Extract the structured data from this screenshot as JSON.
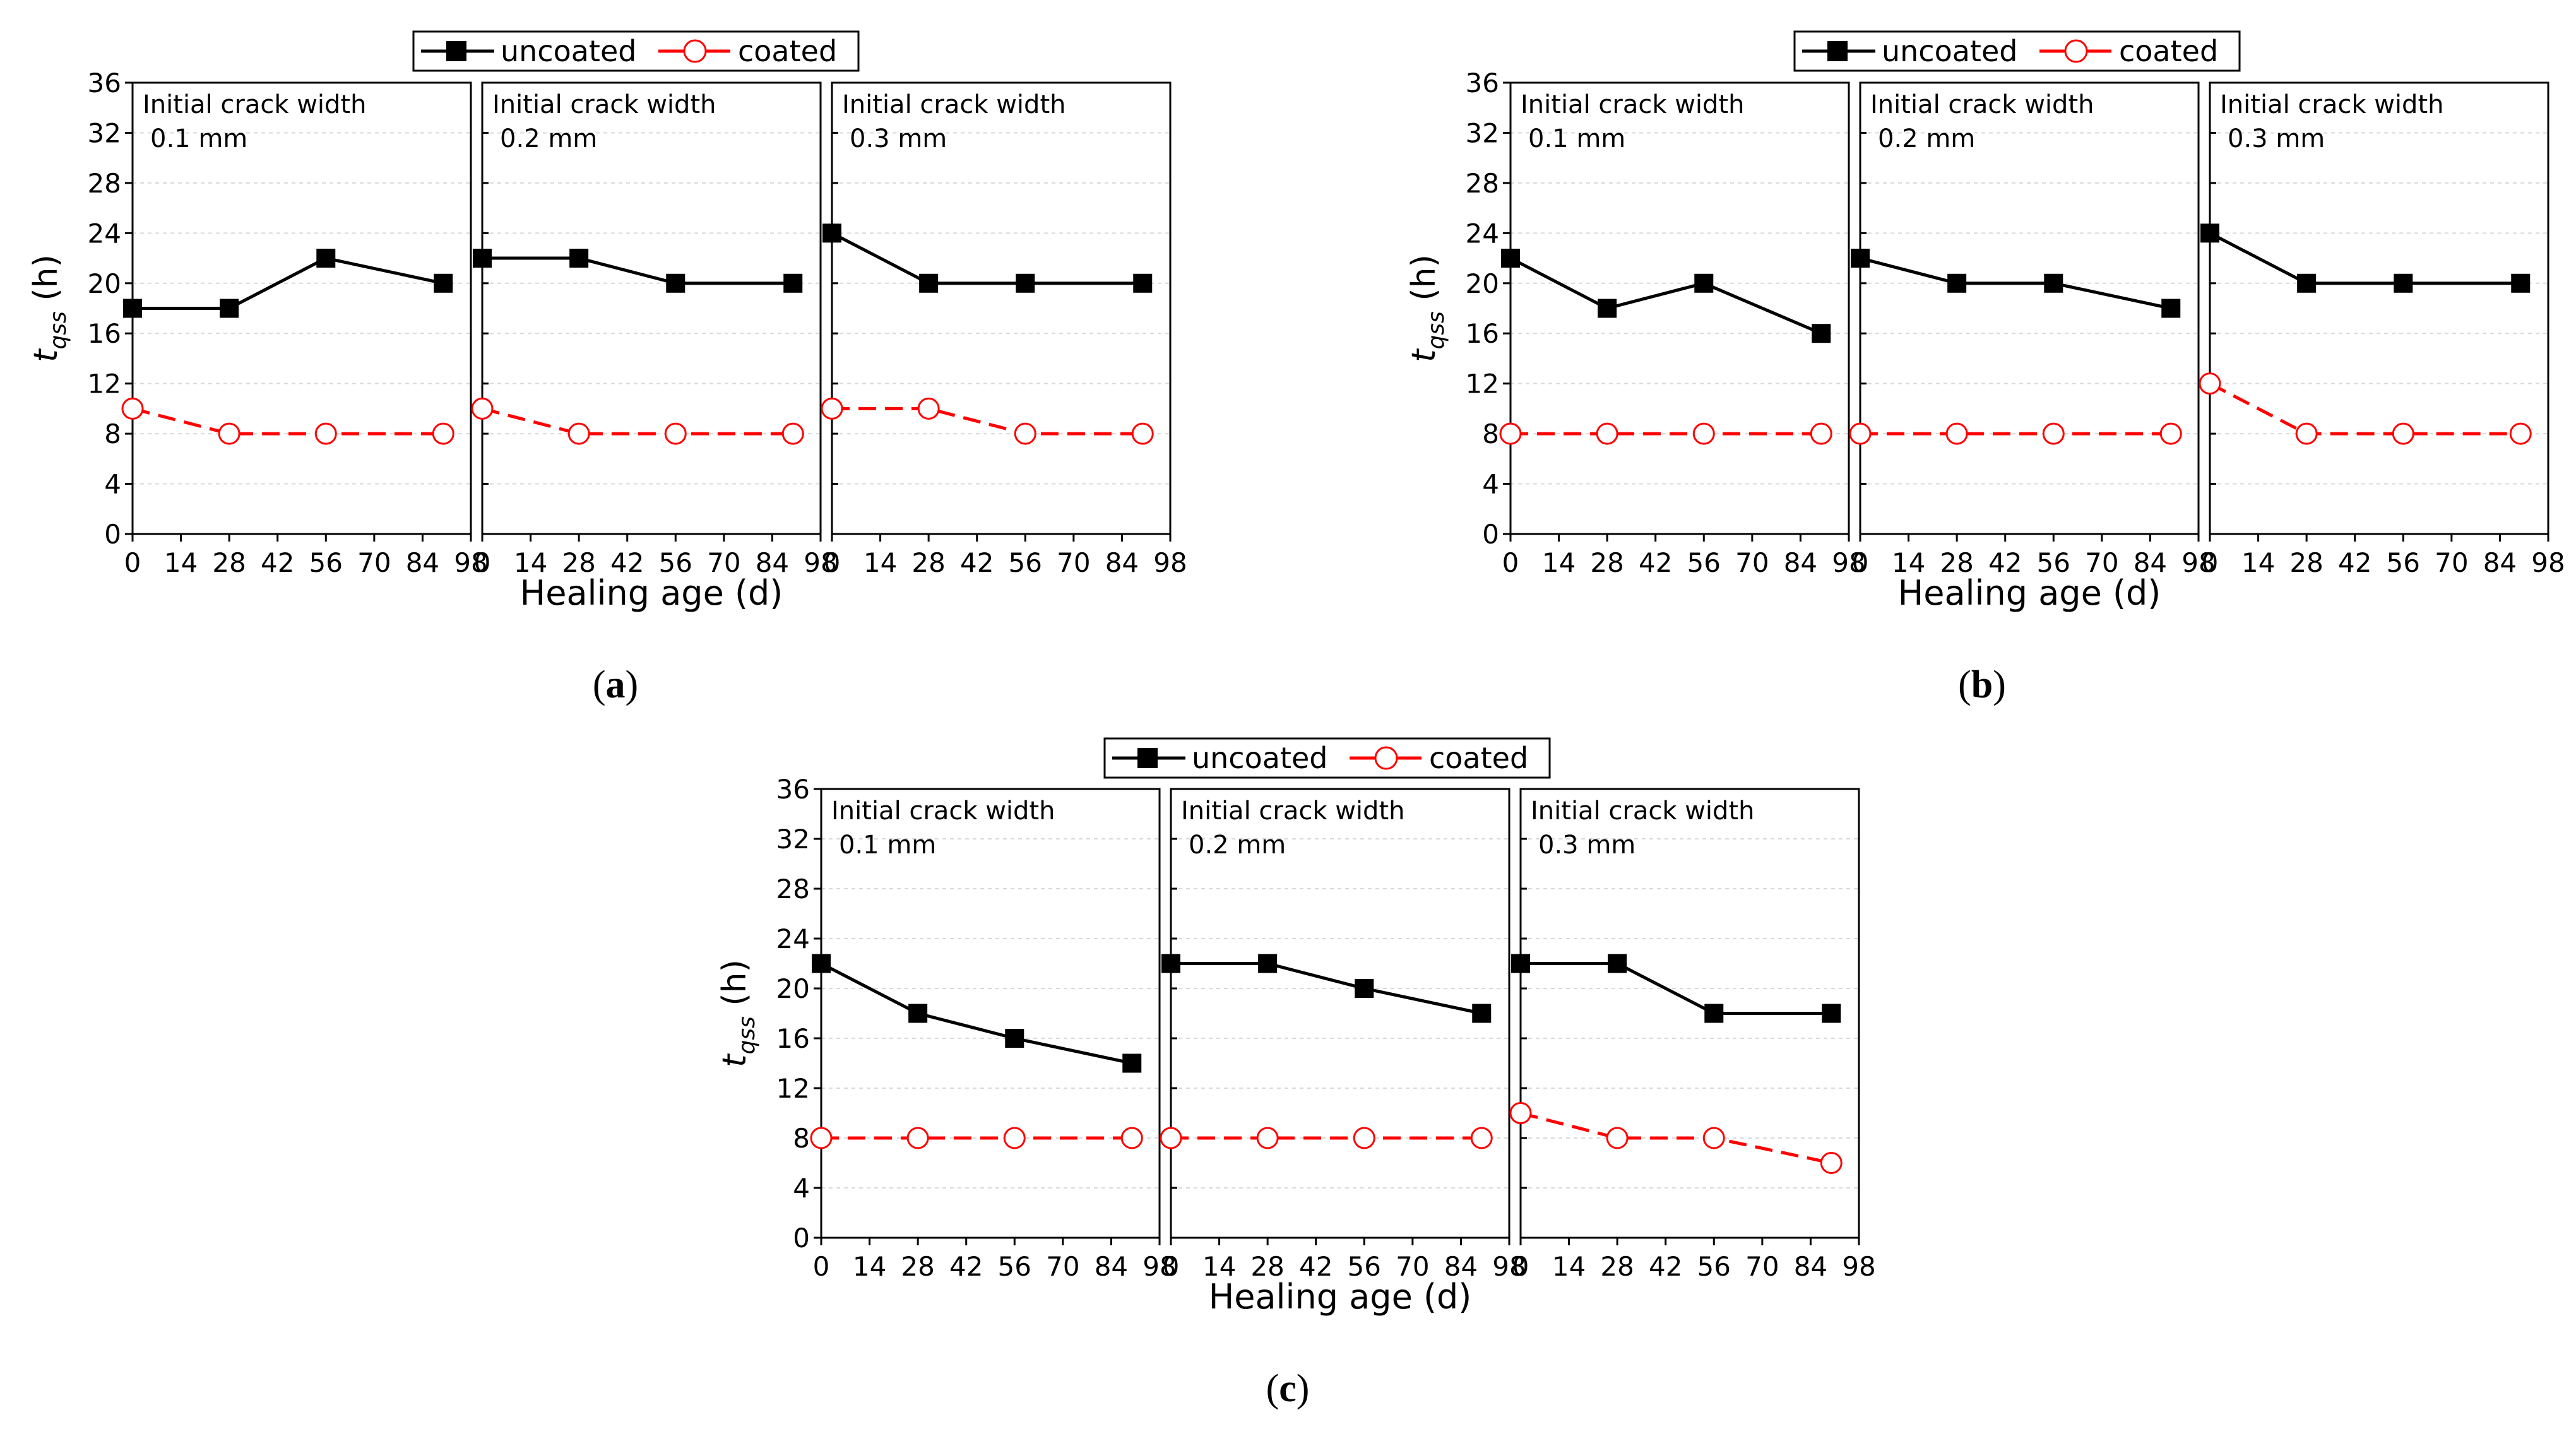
{
  "figure": {
    "legend": {
      "uncoated": "uncoated",
      "coated": "coated"
    },
    "colors": {
      "uncoated": "#000000",
      "coated": "#ff0000",
      "grid": "#d9d9d9"
    }
  },
  "chart_data": [
    {
      "id": "a",
      "caption_letter": "a",
      "type": "line",
      "xlabel": "Healing age (d)",
      "ylabel_main": "t",
      "ylabel_sub": "qss",
      "ylabel_unit": " (h)",
      "xlim": [
        0,
        98
      ],
      "ylim": [
        0,
        36
      ],
      "xticks": [
        0,
        14,
        28,
        42,
        56,
        70,
        84,
        98
      ],
      "yticks": [
        0,
        4,
        8,
        12,
        16,
        20,
        24,
        28,
        32,
        36
      ],
      "panels": [
        {
          "label_line1": "Initial crack width",
          "label_line2": "0.1 mm",
          "x": [
            0,
            28,
            56,
            90
          ],
          "series": [
            {
              "name": "uncoated",
              "values": [
                18,
                18,
                22,
                20
              ]
            },
            {
              "name": "coated",
              "values": [
                10,
                8,
                8,
                8
              ]
            }
          ]
        },
        {
          "label_line1": "Initial crack width",
          "label_line2": "0.2 mm",
          "x": [
            0,
            28,
            56,
            90
          ],
          "series": [
            {
              "name": "uncoated",
              "values": [
                22,
                22,
                20,
                20
              ]
            },
            {
              "name": "coated",
              "values": [
                10,
                8,
                8,
                8
              ]
            }
          ]
        },
        {
          "label_line1": "Initial crack width",
          "label_line2": "0.3 mm",
          "x": [
            0,
            28,
            56,
            90
          ],
          "series": [
            {
              "name": "uncoated",
              "values": [
                24,
                20,
                20,
                20
              ]
            },
            {
              "name": "coated",
              "values": [
                10,
                10,
                8,
                8
              ]
            }
          ]
        }
      ]
    },
    {
      "id": "b",
      "caption_letter": "b",
      "type": "line",
      "xlabel": "Healing age (d)",
      "ylabel_main": "t",
      "ylabel_sub": "qss",
      "ylabel_unit": " (h)",
      "xlim": [
        0,
        98
      ],
      "ylim": [
        0,
        36
      ],
      "xticks": [
        0,
        14,
        28,
        42,
        56,
        70,
        84,
        98
      ],
      "yticks": [
        0,
        4,
        8,
        12,
        16,
        20,
        24,
        28,
        32,
        36
      ],
      "panels": [
        {
          "label_line1": "Initial crack width",
          "label_line2": "0.1 mm",
          "x": [
            0,
            28,
            56,
            90
          ],
          "series": [
            {
              "name": "uncoated",
              "values": [
                22,
                18,
                20,
                16
              ]
            },
            {
              "name": "coated",
              "values": [
                8,
                8,
                8,
                8
              ]
            }
          ]
        },
        {
          "label_line1": "Initial crack width",
          "label_line2": "0.2 mm",
          "x": [
            0,
            28,
            56,
            90
          ],
          "series": [
            {
              "name": "uncoated",
              "values": [
                22,
                20,
                20,
                18
              ]
            },
            {
              "name": "coated",
              "values": [
                8,
                8,
                8,
                8
              ]
            }
          ]
        },
        {
          "label_line1": "Initial crack width",
          "label_line2": "0.3 mm",
          "x": [
            0,
            28,
            56,
            90
          ],
          "series": [
            {
              "name": "uncoated",
              "values": [
                24,
                20,
                20,
                20
              ]
            },
            {
              "name": "coated",
              "values": [
                12,
                8,
                8,
                8
              ]
            }
          ]
        }
      ]
    },
    {
      "id": "c",
      "caption_letter": "c",
      "type": "line",
      "xlabel": "Healing age (d)",
      "ylabel_main": "t",
      "ylabel_sub": "qss",
      "ylabel_unit": " (h)",
      "xlim": [
        0,
        98
      ],
      "ylim": [
        0,
        36
      ],
      "xticks": [
        0,
        14,
        28,
        42,
        56,
        70,
        84,
        98
      ],
      "yticks": [
        0,
        4,
        8,
        12,
        16,
        20,
        24,
        28,
        32,
        36
      ],
      "panels": [
        {
          "label_line1": "Initial crack width",
          "label_line2": "0.1 mm",
          "x": [
            0,
            28,
            56,
            90
          ],
          "series": [
            {
              "name": "uncoated",
              "values": [
                22,
                18,
                16,
                14
              ]
            },
            {
              "name": "coated",
              "values": [
                8,
                8,
                8,
                8
              ]
            }
          ]
        },
        {
          "label_line1": "Initial crack width",
          "label_line2": "0.2 mm",
          "x": [
            0,
            28,
            56,
            90
          ],
          "series": [
            {
              "name": "uncoated",
              "values": [
                22,
                22,
                20,
                18
              ]
            },
            {
              "name": "coated",
              "values": [
                8,
                8,
                8,
                8
              ]
            }
          ]
        },
        {
          "label_line1": "Initial crack width",
          "label_line2": "0.3 mm",
          "x": [
            0,
            28,
            56,
            90
          ],
          "series": [
            {
              "name": "uncoated",
              "values": [
                22,
                22,
                18,
                18
              ]
            },
            {
              "name": "coated",
              "values": [
                10,
                8,
                8,
                6
              ]
            }
          ]
        }
      ]
    }
  ]
}
